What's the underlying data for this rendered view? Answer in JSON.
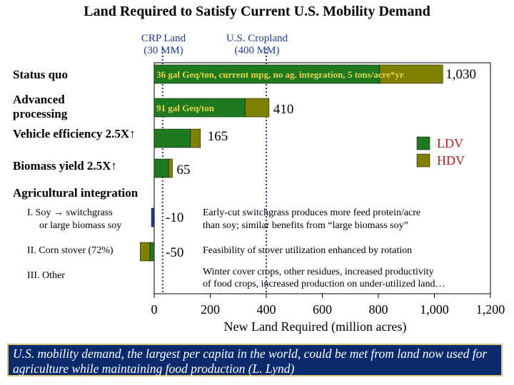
{
  "chart_data": {
    "type": "bar",
    "stacked": true,
    "orientation": "horizontal",
    "title": "Land Required to Satisfy Current U.S. Mobility Demand",
    "xlabel": "New Land Required (million acres)",
    "xlim": [
      0,
      1200
    ],
    "x_ticks": [
      "0",
      "200",
      "400",
      "600",
      "800",
      "1,000",
      "1,200"
    ],
    "reference_lines": [
      {
        "label_line1": "CRP Land",
        "label_line2": "(30 MM)",
        "value": 30
      },
      {
        "label_line1": "U.S. Cropland",
        "label_line2": "(400 MM)",
        "value": 400
      }
    ],
    "legend": {
      "placement": "right",
      "items": [
        {
          "label": "LDV",
          "color": "#1f7a1f"
        },
        {
          "label": "HDV",
          "color": "#808000"
        }
      ]
    },
    "section_label": "Agricultural integration",
    "series_colors": {
      "LDV": "#1f7a1f",
      "HDV": "#808000",
      "ag": "#1f3a8a"
    },
    "rows": [
      {
        "label": "Status quo",
        "ldv": 805,
        "hdv": 225,
        "total_label": "1,030",
        "bar_text": "36 gal Geq/ton, current mpg, no ag. integration, 5 tons/acre*yr"
      },
      {
        "label_line1": "Advanced",
        "label_line2": "processing",
        "ldv": 324,
        "hdv": 86,
        "total_label": "410",
        "bar_text": "91 gal Geq/ton"
      },
      {
        "label": "Vehicle efficiency 2.5X↑",
        "ldv": 129,
        "hdv": 36,
        "total_label": "165"
      },
      {
        "label": "Biomass yield 2.5X↑",
        "ldv": 51,
        "hdv": 14,
        "total_label": "65"
      },
      {
        "label_line1": "I. Soy → switchgrass",
        "label_line2": "or large biomass soy",
        "ldv": -10,
        "total_label": "-10",
        "note_line1": "Early-cut switchgrass produces more feed protein/acre",
        "note_line2": "than soy; similar benefits from “large biomass soy”"
      },
      {
        "label": "II. Corn stover (72%)",
        "ldv": -50,
        "total_label": "-50",
        "note_line1": "Feasibility of stover utilization enhanced by rotation"
      },
      {
        "label": "III. Other",
        "note_line1": "Winter cover crops, other residues, increased productivity",
        "note_line2": "of food crops, increased production on under-utilized land…"
      }
    ]
  },
  "footer": {
    "text": "U.S. mobility demand, the largest per capita in the world, could be met from land now used for agriculture while maintaining food production (L. Lynd)"
  }
}
